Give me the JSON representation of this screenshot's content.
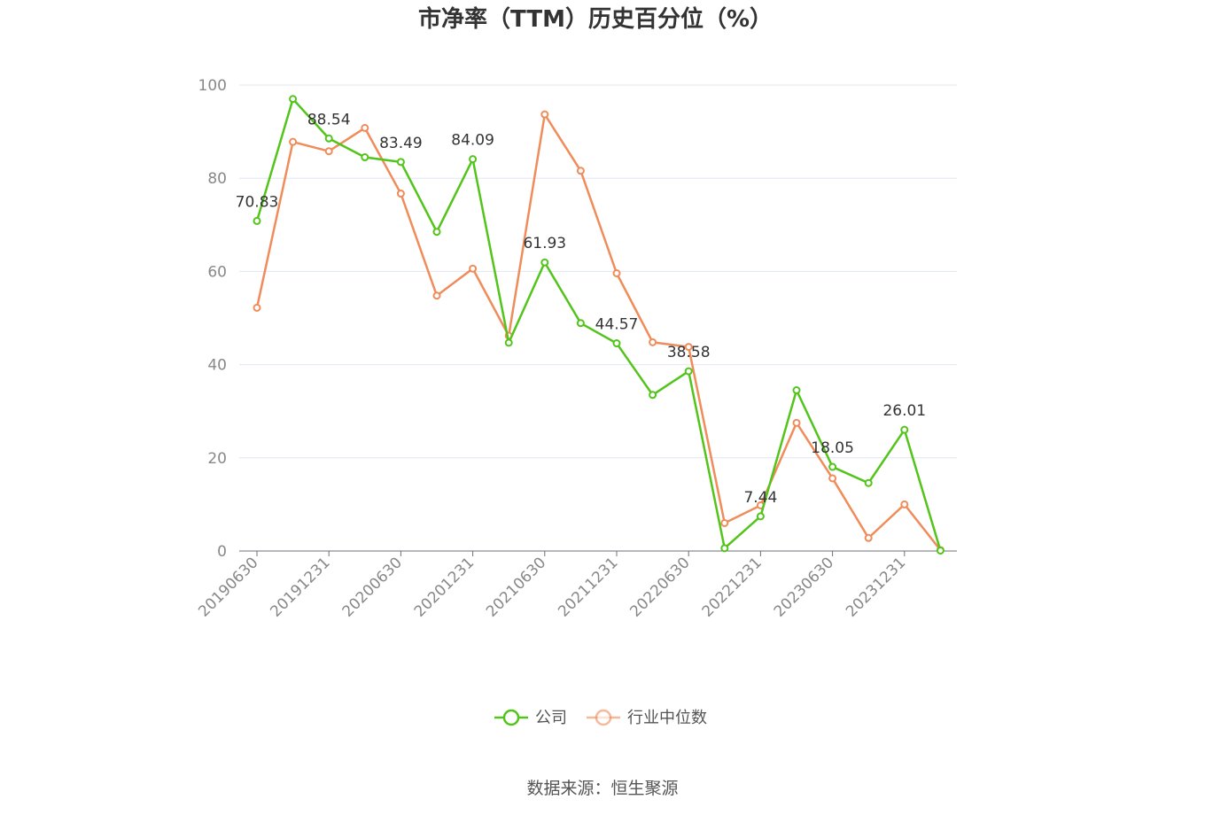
{
  "chart_data": {
    "type": "line",
    "title": "市净率（TTM）历史百分位（%）",
    "xlabel": "",
    "ylabel": "",
    "ylim": [
      0,
      100
    ],
    "y_ticks": [
      0,
      20,
      40,
      60,
      80,
      100
    ],
    "grid": true,
    "legend_position": "bottom-center",
    "x": [
      "20190630",
      "20190930",
      "20191231",
      "20200331",
      "20200630",
      "20200930",
      "20201231",
      "20210331",
      "20210630",
      "20210930",
      "20211231",
      "20220331",
      "20220630",
      "20220930",
      "20221231",
      "20230331",
      "20230630",
      "20230930",
      "20231231",
      "20240331"
    ],
    "x_tick_labels": [
      "20190630",
      "20191231",
      "20200630",
      "20201231",
      "20210630",
      "20211231",
      "20220630",
      "20221231",
      "20230630",
      "20231231"
    ],
    "series": [
      {
        "name": "公司",
        "color": "#52c41a",
        "values": [
          70.83,
          97.0,
          88.54,
          84.5,
          83.49,
          68.5,
          84.09,
          44.7,
          61.93,
          48.9,
          44.57,
          33.5,
          38.58,
          0.6,
          7.44,
          34.5,
          18.05,
          14.6,
          26.01,
          0.1
        ],
        "labeled_indices": [
          0,
          2,
          4,
          6,
          8,
          10,
          12,
          14,
          16,
          18
        ]
      },
      {
        "name": "行业中位数",
        "color": "#f08c5a",
        "values": [
          52.2,
          87.8,
          85.8,
          90.8,
          76.7,
          54.8,
          60.6,
          46.2,
          93.7,
          81.6,
          59.6,
          44.8,
          43.8,
          6.0,
          9.8,
          27.5,
          15.6,
          2.8,
          10.0,
          0.2
        ]
      }
    ]
  },
  "source": "数据来源：恒生聚源",
  "colors": {
    "grid": "#e0e6f1",
    "axis": "#6e7079",
    "title": "#333333"
  }
}
